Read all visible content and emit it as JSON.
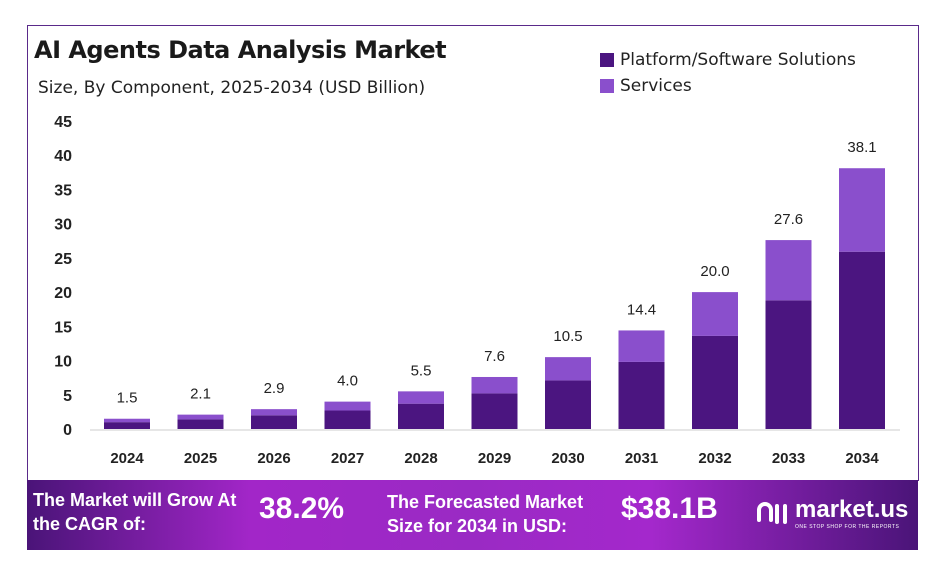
{
  "chart_data": {
    "type": "bar",
    "stacked": true,
    "title": "AI Agents Data Analysis Market",
    "subtitle": "Size, By Component, 2025-2034 (USD Billion)",
    "categories": [
      "2024",
      "2025",
      "2026",
      "2027",
      "2028",
      "2029",
      "2030",
      "2031",
      "2032",
      "2033",
      "2034"
    ],
    "series": [
      {
        "name": "Platform/Software Solutions",
        "color": "#4b1580",
        "values": [
          1.0,
          1.4,
          2.0,
          2.7,
          3.7,
          5.2,
          7.1,
          9.8,
          13.6,
          18.8,
          25.9
        ]
      },
      {
        "name": "Services",
        "color": "#8a4fcc",
        "values": [
          0.5,
          0.7,
          0.9,
          1.3,
          1.8,
          2.4,
          3.4,
          4.6,
          6.4,
          8.8,
          12.2
        ]
      }
    ],
    "totals": [
      "1.5",
      "2.1",
      "2.9",
      "4.0",
      "5.5",
      "7.6",
      "10.5",
      "14.4",
      "20.0",
      "27.6",
      "38.1"
    ],
    "ylim": [
      0,
      45
    ],
    "yticks": [
      "0",
      "5",
      "10",
      "15",
      "20",
      "25",
      "30",
      "35",
      "40",
      "45"
    ],
    "grid": false,
    "legend_position": "top-right"
  },
  "banner": {
    "cagr_label": "The Market will Grow At the CAGR of:",
    "cagr_value": "38.2%",
    "forecast_label": "The Forecasted Market Size for 2034 in USD:",
    "forecast_value": "$38.1B",
    "logo_name": "market.us",
    "logo_tagline": "ONE STOP SHOP FOR THE REPORTS"
  }
}
